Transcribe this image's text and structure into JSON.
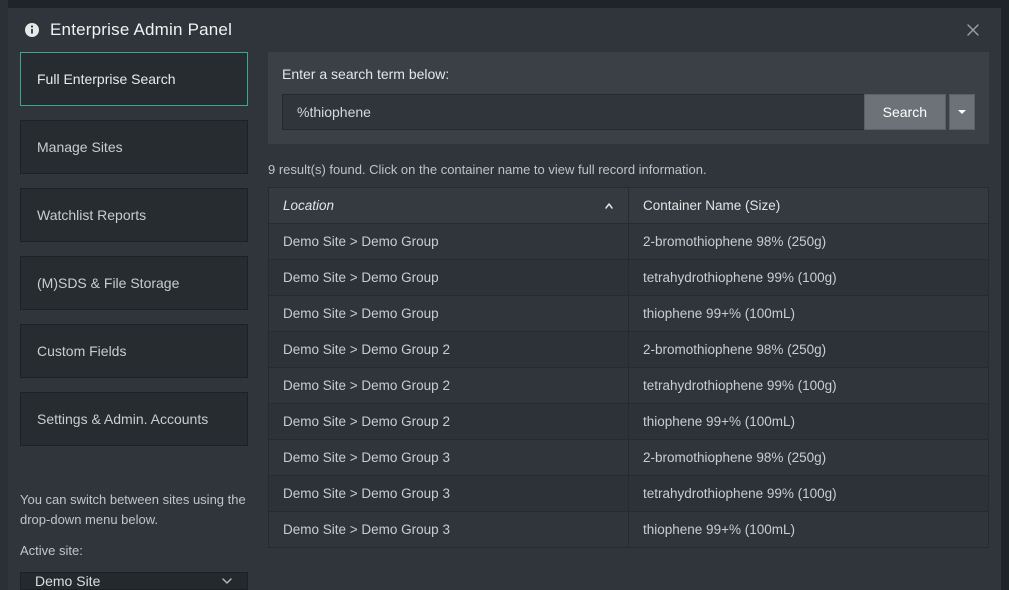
{
  "header": {
    "title": "Enterprise Admin Panel"
  },
  "sidebar": {
    "items": [
      {
        "label": "Full Enterprise Search",
        "active": true
      },
      {
        "label": "Manage Sites",
        "active": false
      },
      {
        "label": "Watchlist Reports",
        "active": false
      },
      {
        "label": "(M)SDS & File Storage",
        "active": false
      },
      {
        "label": "Custom Fields",
        "active": false
      },
      {
        "label": "Settings & Admin. Accounts",
        "active": false
      }
    ],
    "note": "You can switch between sites using the drop-down menu below.",
    "active_site_label": "Active site:",
    "active_site_value": "Demo Site"
  },
  "search": {
    "label": "Enter a search term below:",
    "value": "%thiophene",
    "button": "Search"
  },
  "results": {
    "summary": "9 result(s) found. Click on the container name to view full record information.",
    "columns": {
      "location": "Location",
      "container": "Container Name (Size)"
    },
    "sort": {
      "column": "location",
      "direction": "asc"
    },
    "rows": [
      {
        "location": "Demo Site > Demo Group",
        "container": "2-bromothiophene 98% (250g)"
      },
      {
        "location": "Demo Site > Demo Group",
        "container": "tetrahydrothiophene 99% (100g)"
      },
      {
        "location": "Demo Site > Demo Group",
        "container": "thiophene 99+% (100mL)"
      },
      {
        "location": "Demo Site > Demo Group 2",
        "container": "2-bromothiophene 98% (250g)"
      },
      {
        "location": "Demo Site > Demo Group 2",
        "container": "tetrahydrothiophene 99% (100g)"
      },
      {
        "location": "Demo Site > Demo Group 2",
        "container": "thiophene 99+% (100mL)"
      },
      {
        "location": "Demo Site > Demo Group 3",
        "container": "2-bromothiophene 98% (250g)"
      },
      {
        "location": "Demo Site > Demo Group 3",
        "container": "tetrahydrothiophene 99% (100g)"
      },
      {
        "location": "Demo Site > Demo Group 3",
        "container": "thiophene 99+% (100mL)"
      }
    ]
  },
  "colors": {
    "panel_bg": "#2f353a",
    "body_bg": "#1e2529",
    "accent_border": "#3ca889",
    "button_bg": "#6c7277",
    "nav_bg": "#272c30",
    "input_bg": "#2f353a",
    "table_header_bg": "#343a3f",
    "border": "#262b2f"
  }
}
